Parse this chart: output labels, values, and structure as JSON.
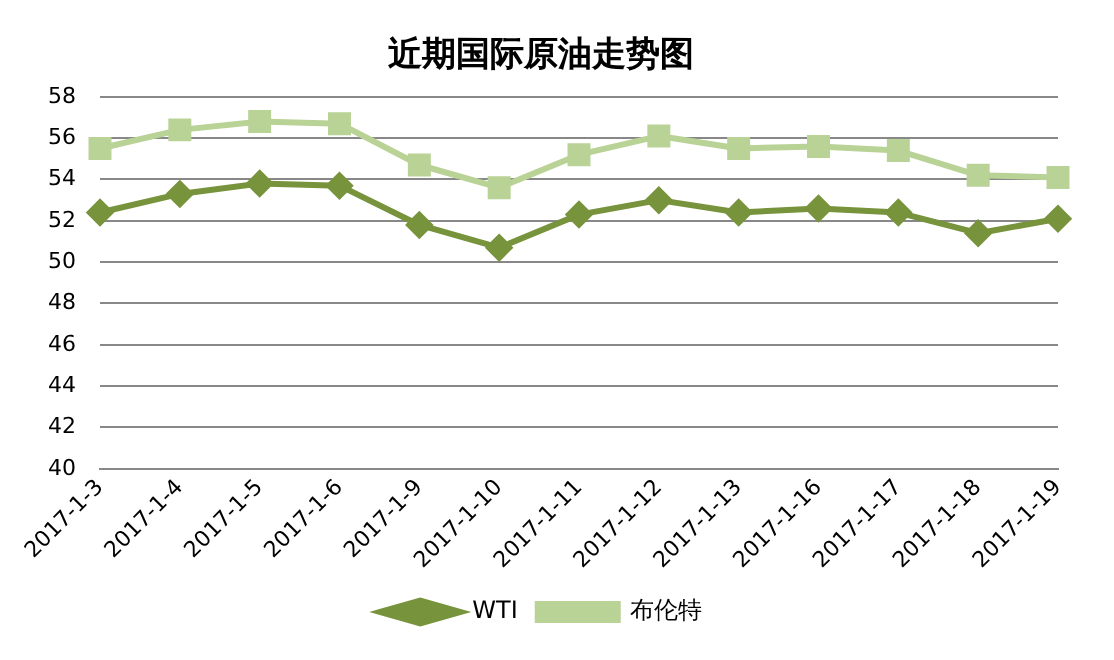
{
  "chart_data": {
    "type": "line",
    "title": "近期国际原油走势图",
    "categories": [
      "2017-1-3",
      "2017-1-4",
      "2017-1-5",
      "2017-1-6",
      "2017-1-9",
      "2017-1-10",
      "2017-1-11",
      "2017-1-12",
      "2017-1-13",
      "2017-1-16",
      "2017-1-17",
      "2017-1-18",
      "2017-1-19"
    ],
    "series": [
      {
        "name": "WTI",
        "color": "#77933c",
        "marker": "diamond",
        "values": [
          52.4,
          53.3,
          53.8,
          53.7,
          51.8,
          50.7,
          52.3,
          53.0,
          52.4,
          52.6,
          52.4,
          51.4,
          52.1
        ]
      },
      {
        "name": "布伦特",
        "color": "#b9d296",
        "marker": "square",
        "values": [
          55.5,
          56.4,
          56.8,
          56.7,
          54.7,
          53.6,
          55.2,
          56.1,
          55.5,
          55.6,
          55.4,
          54.2,
          54.1
        ]
      }
    ],
    "ylim": [
      40,
      58
    ],
    "yticks": [
      40,
      42,
      44,
      46,
      48,
      50,
      52,
      54,
      56,
      58
    ],
    "grid": "y",
    "legend": "bottom"
  }
}
